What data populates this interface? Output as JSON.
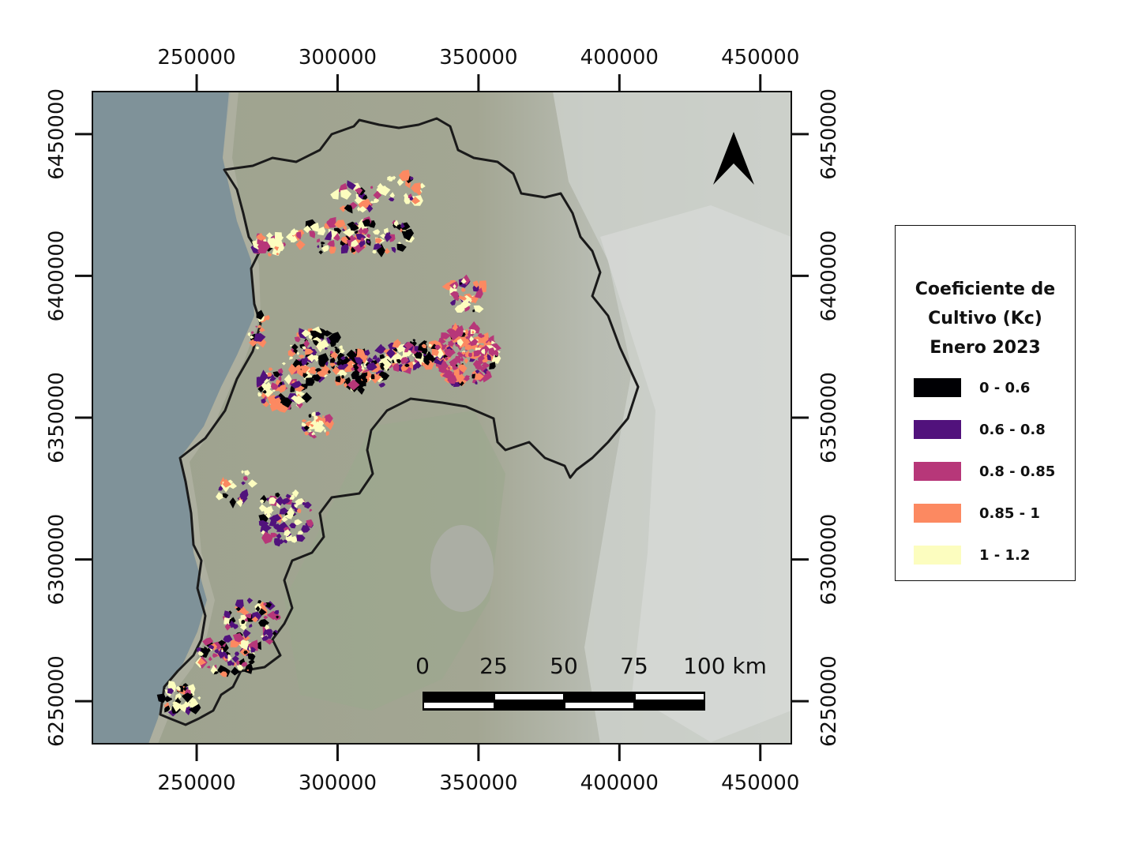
{
  "map": {
    "x_ticks": [
      "250000",
      "300000",
      "350000",
      "400000",
      "450000"
    ],
    "y_ticks": [
      "6450000",
      "6400000",
      "6350000",
      "6300000",
      "6250000"
    ],
    "x_extent": [
      213000,
      461000
    ],
    "y_extent": [
      6235000,
      6465000
    ],
    "north_arrow": "north-arrow-icon",
    "scale_bar": {
      "labels": [
        "0",
        "25",
        "50",
        "75",
        "100 km"
      ]
    }
  },
  "legend": {
    "title_lines": [
      "Coeficiente de",
      "Cultivo (Kc)",
      "Enero 2023"
    ],
    "items": [
      {
        "label": "0 - 0.6",
        "color": "#000004"
      },
      {
        "label": "0.6 - 0.8",
        "color": "#51127c"
      },
      {
        "label": "0.8 - 0.85",
        "color": "#b73779"
      },
      {
        "label": "0.85 - 1",
        "color": "#fc8961"
      },
      {
        "label": "1 - 1.2",
        "color": "#fcfdbf"
      }
    ]
  },
  "colors": {
    "ocean": "#7e9198",
    "terrain": "#a4a692",
    "mountains": "#c9cdc6",
    "boundary": "#1a1a1a"
  }
}
